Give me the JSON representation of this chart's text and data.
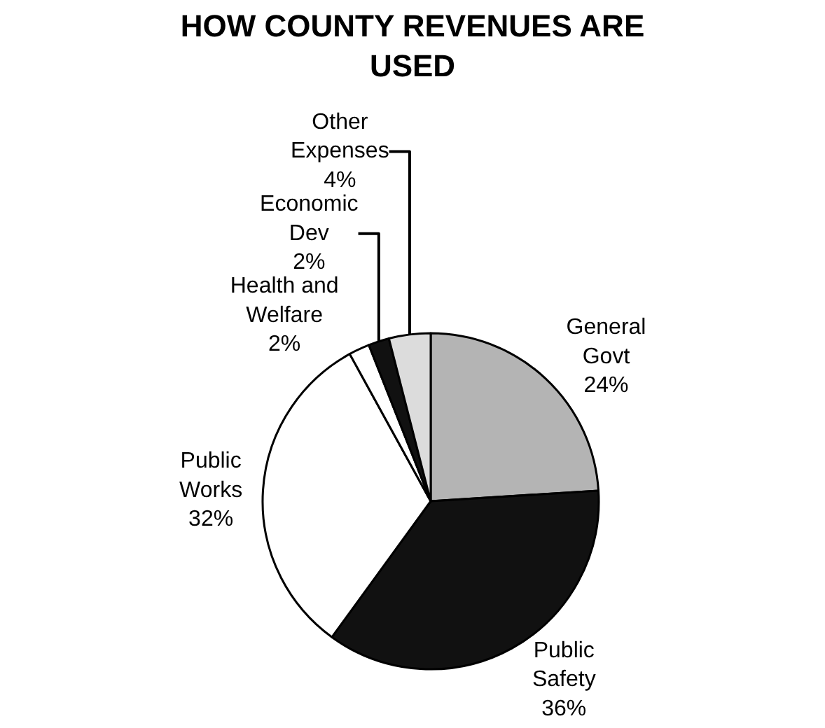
{
  "chart_data": {
    "type": "pie",
    "title": "HOW COUNTY REVENUES ARE USED",
    "categories": [
      "General Govt",
      "Public Safety",
      "Public Works",
      "Health and Welfare",
      "Economic Dev",
      "Other Expenses"
    ],
    "values": [
      24,
      36,
      32,
      2,
      2,
      4
    ],
    "value_labels": [
      "24%",
      "36%",
      "32%",
      "2%",
      "2%",
      "4%"
    ],
    "colors": [
      "#b4b4b4",
      "#111111",
      "#ffffff",
      "#ffffff",
      "#111111",
      "#dcdcdc"
    ]
  }
}
